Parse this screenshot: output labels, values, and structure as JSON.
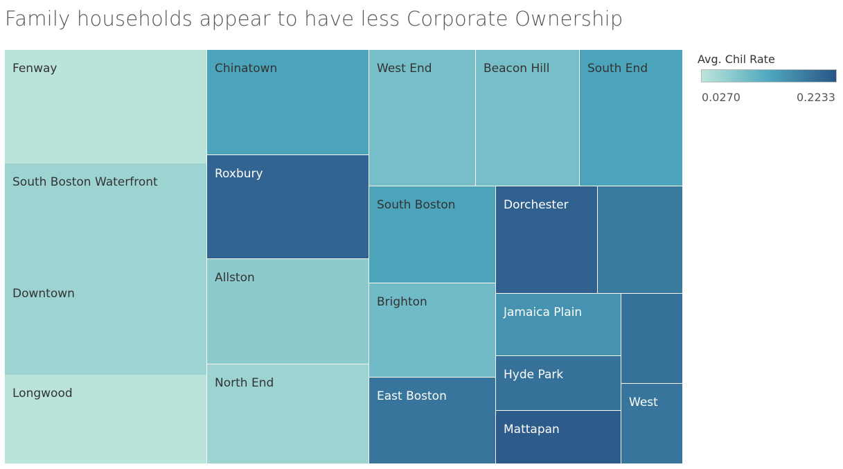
{
  "chart_data": {
    "type": "treemap",
    "title": "Family households appear to have less Corporate Ownership",
    "legend": {
      "title": "Avg. Chil Rate",
      "min_label": "0.0270",
      "max_label": "0.2233",
      "min": 0.027,
      "max": 0.2233,
      "color_low": "#bde5da",
      "color_mid": "#4ea8be",
      "color_high": "#2a5586",
      "placement": "right"
    },
    "tiles": [
      {
        "label": "Fenway",
        "value": 0.03
      },
      {
        "label": "South Boston Waterfront",
        "value": 0.055
      },
      {
        "label": "Downtown",
        "value": 0.055
      },
      {
        "label": "Longwood",
        "value": 0.03
      },
      {
        "label": "Chinatown",
        "value": 0.13
      },
      {
        "label": "Roxbury",
        "value": 0.205
      },
      {
        "label": "Allston",
        "value": 0.07
      },
      {
        "label": "North End",
        "value": 0.055
      },
      {
        "label": "West End",
        "value": 0.09
      },
      {
        "label": "Beacon Hill",
        "value": 0.09
      },
      {
        "label": "South End",
        "value": 0.13
      },
      {
        "label": "South Boston",
        "value": 0.13
      },
      {
        "label": "Dorchester",
        "value": 0.21
      },
      {
        "label": "",
        "value": 0.18
      },
      {
        "label": "Brighton",
        "value": 0.095
      },
      {
        "label": "Jamaica Plain",
        "value": 0.15
      },
      {
        "label": "",
        "value": 0.19
      },
      {
        "label": "Hyde Park",
        "value": 0.19
      },
      {
        "label": "East Boston",
        "value": 0.185
      },
      {
        "label": "West",
        "value": 0.185
      },
      {
        "label": "Mattapan",
        "value": 0.215
      }
    ]
  }
}
